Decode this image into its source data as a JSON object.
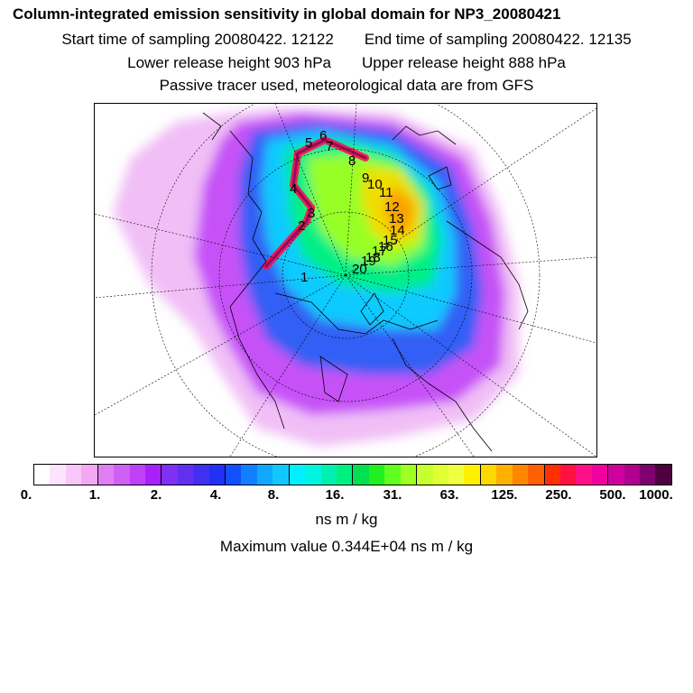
{
  "header": {
    "title": "Column-integrated emission sensitivity in global domain for NP3_20080421",
    "start_time": "Start time of sampling 20080422. 12122",
    "end_time": "End time of sampling 20080422. 12135",
    "lower_height": "Lower release height  903 hPa",
    "upper_height": "Upper release height  888 hPa",
    "tracer_note": "Passive tracer used, meteorological data are from GFS"
  },
  "colorbar": {
    "colors": [
      "#ffffff",
      "#fde3fd",
      "#f8c6f8",
      "#f3a8f3",
      "#e07ff3",
      "#d060f5",
      "#c040f8",
      "#a820fa",
      "#7f30f5",
      "#6030f0",
      "#4030f0",
      "#2030f5",
      "#1050ff",
      "#1080ff",
      "#10a8ff",
      "#10c8ff",
      "#00f0ff",
      "#00f5e0",
      "#00f0b0",
      "#00f080",
      "#00e050",
      "#20f020",
      "#60ff20",
      "#a0ff20",
      "#c8ff30",
      "#e0ff30",
      "#f0ff40",
      "#fff000",
      "#ffd800",
      "#ffb000",
      "#ff8800",
      "#ff6000",
      "#ff3000",
      "#ff1040",
      "#ff1088",
      "#f000a0",
      "#d000a0",
      "#b00090",
      "#800070",
      "#500040"
    ],
    "labels": [
      "0.",
      "1.",
      "2.",
      "4.",
      "8.",
      "16.",
      "31.",
      "63.",
      "125.",
      "250.",
      "500.",
      "1000."
    ],
    "units": "ns m / kg"
  },
  "max_value": "Maximum value  0.344E+04 ns m / kg",
  "map": {
    "track_points": [
      "1",
      "2",
      "3",
      "4",
      "5",
      "6",
      "7",
      "8",
      "9",
      "10",
      "11",
      "12",
      "13",
      "14",
      "15",
      "16",
      "17",
      "18",
      "19",
      "20"
    ]
  }
}
